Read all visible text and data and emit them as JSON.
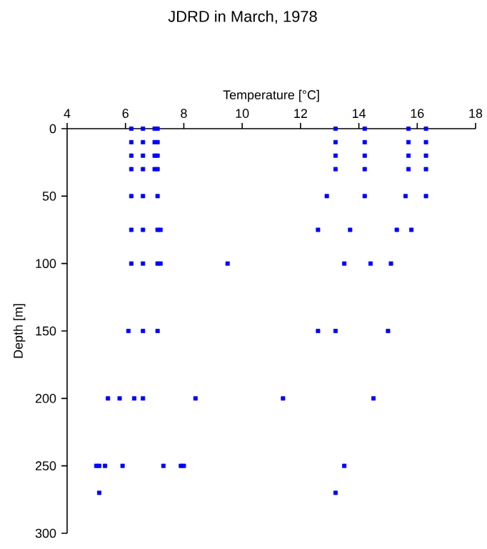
{
  "chart_data": {
    "type": "scatter",
    "title": "JDRD in March, 1978",
    "xlabel": "Temperature [°C]",
    "ylabel": "Depth [m]",
    "marker": "square",
    "xlim": [
      4,
      18
    ],
    "xticks": [
      4,
      6,
      8,
      10,
      12,
      14,
      16,
      18
    ],
    "ylim": [
      300,
      0
    ],
    "yticks": [
      0,
      50,
      100,
      150,
      200,
      250,
      300
    ],
    "series": [
      {
        "color": "#0000ff",
        "x": [
          6.2,
          6.6,
          7.0,
          7.1,
          13.2,
          14.2,
          15.7,
          16.3,
          6.2,
          6.6,
          7.0,
          7.1,
          13.2,
          14.2,
          15.7,
          16.3,
          6.2,
          6.6,
          7.0,
          7.1,
          13.2,
          14.2,
          15.7,
          16.3,
          6.2,
          6.6,
          7.0,
          7.1,
          13.2,
          14.2,
          15.7,
          16.3,
          6.2,
          6.6,
          7.1,
          12.9,
          14.2,
          15.6,
          16.3,
          6.2,
          6.6,
          7.1,
          7.2,
          12.6,
          13.7,
          15.3,
          15.8,
          6.2,
          6.6,
          7.1,
          7.2,
          9.5,
          13.5,
          14.4,
          15.1,
          6.1,
          6.6,
          7.1,
          12.6,
          13.2,
          15.0,
          5.4,
          5.8,
          6.3,
          6.6,
          8.4,
          11.4,
          14.5,
          5.0,
          5.1,
          5.3,
          5.9,
          7.3,
          7.9,
          8.0,
          13.5,
          5.1,
          13.2
        ],
        "values": [
          0,
          0,
          0,
          0,
          0,
          0,
          0,
          0,
          10,
          10,
          10,
          10,
          10,
          10,
          10,
          10,
          20,
          20,
          20,
          20,
          20,
          20,
          20,
          20,
          30,
          30,
          30,
          30,
          30,
          30,
          30,
          30,
          50,
          50,
          50,
          50,
          50,
          50,
          50,
          75,
          75,
          75,
          75,
          75,
          75,
          75,
          75,
          100,
          100,
          100,
          100,
          100,
          100,
          100,
          100,
          150,
          150,
          150,
          150,
          150,
          150,
          200,
          200,
          200,
          200,
          200,
          200,
          200,
          250,
          250,
          250,
          250,
          250,
          250,
          250,
          250,
          270,
          270
        ]
      }
    ]
  }
}
